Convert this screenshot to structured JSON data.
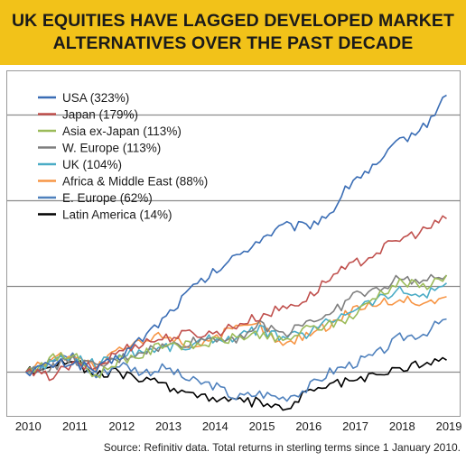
{
  "title": {
    "line1": "UK EQUITIES HAVE LAGGED DEVELOPED MARKET",
    "line2": "ALTERNATIVES OVER THE PAST DECADE"
  },
  "source": "Source: Refinitiv data. Total returns in sterling terms since 1 January 2010.",
  "colors": {
    "banner": "#f2c219",
    "gridline": "#8c8c8c"
  },
  "chart_data": {
    "type": "line",
    "title": "UK EQUITIES HAVE LAGGED DEVELOPED MARKET ALTERNATIVES OVER THE PAST DECADE",
    "xlabel": "",
    "ylabel": "",
    "x_ticks": [
      "2010",
      "2011",
      "2012",
      "2013",
      "2014",
      "2015",
      "2016",
      "2017",
      "2018",
      "2019"
    ],
    "xlim": [
      2009.6,
      2019.3
    ],
    "ylim": [
      -50,
      350
    ],
    "y_gridlines": [
      0,
      100,
      200,
      300
    ],
    "y_tick_labels_visible": false,
    "grid": "horizontal",
    "legend_position": "top-left",
    "x": [
      2010.0,
      2010.5,
      2011.0,
      2011.5,
      2012.0,
      2012.5,
      2013.0,
      2013.5,
      2014.0,
      2014.5,
      2015.0,
      2015.5,
      2016.0,
      2016.5,
      2017.0,
      2017.5,
      2018.0,
      2018.5,
      2019.0
    ],
    "series": [
      {
        "name": "USA (323%)",
        "color": "#3a6db5",
        "values": [
          0,
          8,
          12,
          2,
          18,
          40,
          65,
          95,
          115,
          135,
          155,
          170,
          170,
          185,
          225,
          240,
          270,
          285,
          323
        ]
      },
      {
        "name": "Japan (179%)",
        "color": "#c0504d",
        "values": [
          0,
          -5,
          8,
          5,
          25,
          35,
          40,
          45,
          45,
          55,
          65,
          75,
          85,
          110,
          125,
          140,
          155,
          165,
          179
        ]
      },
      {
        "name": "Asia ex-Japan (113%)",
        "color": "#9bbb59",
        "values": [
          0,
          15,
          20,
          -5,
          15,
          20,
          35,
          30,
          35,
          40,
          45,
          35,
          50,
          55,
          65,
          90,
          105,
          100,
          113
        ]
      },
      {
        "name": "W. Europe (113%)",
        "color": "#7f7f7f",
        "values": [
          0,
          5,
          15,
          5,
          15,
          25,
          30,
          35,
          40,
          40,
          55,
          45,
          60,
          65,
          90,
          95,
          110,
          105,
          113
        ]
      },
      {
        "name": "UK (104%)",
        "color": "#4bacc6",
        "values": [
          0,
          10,
          18,
          10,
          20,
          25,
          30,
          30,
          40,
          40,
          50,
          40,
          45,
          60,
          75,
          85,
          95,
          90,
          104
        ]
      },
      {
        "name": "Africa & Middle East (88%)",
        "color": "#f79646",
        "values": [
          0,
          15,
          22,
          5,
          25,
          35,
          45,
          30,
          40,
          50,
          55,
          30,
          45,
          55,
          75,
          80,
          85,
          80,
          88
        ]
      },
      {
        "name": "E. Europe (62%)",
        "color": "#4f81bd",
        "values": [
          0,
          12,
          20,
          -5,
          10,
          0,
          5,
          -10,
          -15,
          -30,
          -25,
          -30,
          -20,
          0,
          10,
          20,
          40,
          45,
          62
        ]
      },
      {
        "name": "Latin America (14%)",
        "color": "#000000",
        "values": [
          0,
          8,
          15,
          -5,
          0,
          -10,
          -15,
          -25,
          -30,
          -35,
          -35,
          -45,
          -25,
          -15,
          -10,
          -5,
          5,
          10,
          14
        ]
      }
    ]
  }
}
